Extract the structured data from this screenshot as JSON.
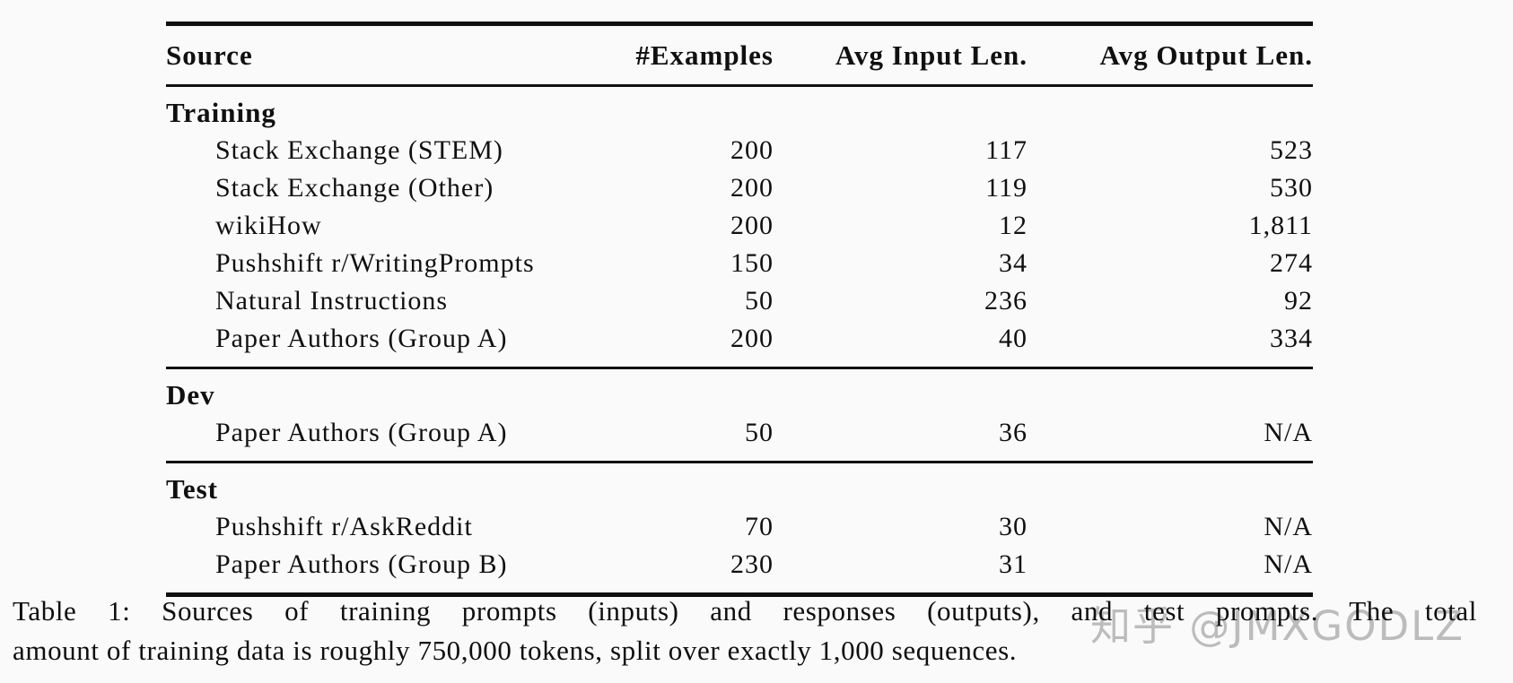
{
  "page": {
    "background": "#fafafa",
    "text_color": "#101010",
    "rule_color": "#101010"
  },
  "table": {
    "columns": [
      "Source",
      "#Examples",
      "Avg Input Len.",
      "Avg Output Len."
    ],
    "sections": [
      {
        "label": "Training",
        "rows": [
          {
            "source": "Stack Exchange (STEM)",
            "examples": "200",
            "avg_input_len": "117",
            "avg_output_len": "523"
          },
          {
            "source": "Stack Exchange (Other)",
            "examples": "200",
            "avg_input_len": "119",
            "avg_output_len": "530"
          },
          {
            "source": "wikiHow",
            "examples": "200",
            "avg_input_len": "12",
            "avg_output_len": "1,811"
          },
          {
            "source": "Pushshift r/WritingPrompts",
            "examples": "150",
            "avg_input_len": "34",
            "avg_output_len": "274"
          },
          {
            "source": "Natural Instructions",
            "examples": "50",
            "avg_input_len": "236",
            "avg_output_len": "92"
          },
          {
            "source": "Paper Authors (Group A)",
            "examples": "200",
            "avg_input_len": "40",
            "avg_output_len": "334"
          }
        ]
      },
      {
        "label": "Dev",
        "rows": [
          {
            "source": "Paper Authors (Group A)",
            "examples": "50",
            "avg_input_len": "36",
            "avg_output_len": "N/A"
          }
        ]
      },
      {
        "label": "Test",
        "rows": [
          {
            "source": "Pushshift r/AskReddit",
            "examples": "70",
            "avg_input_len": "30",
            "avg_output_len": "N/A"
          },
          {
            "source": "Paper Authors (Group B)",
            "examples": "230",
            "avg_input_len": "31",
            "avg_output_len": "N/A"
          }
        ]
      }
    ]
  },
  "caption": {
    "line1": "Table 1: Sources of training prompts (inputs) and responses (outputs), and test prompts. The total",
    "line2": "amount of training data is roughly 750,000 tokens, split over exactly 1,000 sequences."
  },
  "watermark": {
    "text": "知乎 @JMXGODLZ",
    "color": "#bcbcbc"
  }
}
